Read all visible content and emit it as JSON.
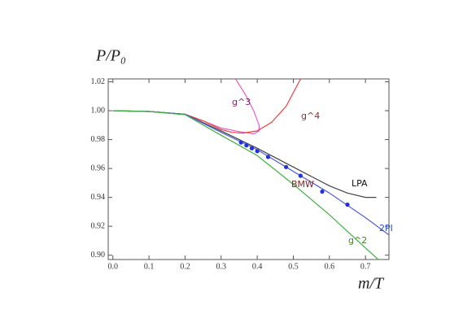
{
  "chart_data": {
    "type": "line",
    "ylabel": "P/P₀",
    "xlabel": "m/T",
    "xlim": [
      -0.013,
      0.765
    ],
    "ylim": [
      0.897,
      1.022
    ],
    "xticks": [
      {
        "value": 0,
        "label": "0.0"
      },
      0.1,
      0.2,
      0.3,
      0.4,
      0.5,
      0.6,
      0.7
    ],
    "yticks": [
      {
        "value": 0.9,
        "label": "0.90"
      },
      0.92,
      0.94,
      0.96,
      0.98,
      {
        "value": 1,
        "label": "1.00"
      },
      1.02
    ],
    "series": [
      {
        "name": "g^3",
        "color": "#e060c8",
        "label_color": "#7a2a6a",
        "x": [
          0,
          0.1,
          0.2,
          0.25,
          0.3,
          0.35,
          0.39,
          0.405,
          0.405,
          0.39,
          0.37,
          0.34
        ],
        "values": [
          1.0,
          0.9995,
          0.9975,
          0.993,
          0.988,
          0.9855,
          0.984,
          0.986,
          0.99,
          1.0,
          1.01,
          1.022
        ]
      },
      {
        "name": "g^4",
        "color": "#f04040",
        "label_color": "#8b3030",
        "x": [
          0,
          0.1,
          0.2,
          0.25,
          0.3,
          0.33,
          0.36,
          0.4,
          0.44,
          0.48,
          0.52
        ],
        "values": [
          1.0,
          0.9995,
          0.9975,
          0.993,
          0.987,
          0.985,
          0.9845,
          0.986,
          0.992,
          1.003,
          1.022
        ]
      },
      {
        "name": "LPA",
        "color": "#444444",
        "label_color": "#111111",
        "x": [
          0,
          0.1,
          0.2,
          0.3,
          0.4,
          0.5,
          0.6,
          0.65,
          0.7,
          0.73
        ],
        "values": [
          1.0,
          0.9995,
          0.9975,
          0.986,
          0.974,
          0.961,
          0.948,
          0.943,
          0.94,
          0.94
        ]
      },
      {
        "name": "2PI",
        "color": "#5060e0",
        "label_color": "#3050c0",
        "x": [
          0,
          0.1,
          0.2,
          0.3,
          0.4,
          0.5,
          0.6,
          0.7,
          0.765
        ],
        "values": [
          1.0,
          0.9995,
          0.9975,
          0.985,
          0.973,
          0.958,
          0.943,
          0.926,
          0.914
        ]
      },
      {
        "name": "g^2",
        "color": "#40b040",
        "label_color": "#3a8a20",
        "x": [
          0,
          0.1,
          0.2,
          0.3,
          0.4,
          0.5,
          0.6,
          0.7,
          0.74
        ],
        "values": [
          1.0,
          0.9995,
          0.9972,
          0.983,
          0.969,
          0.949,
          0.928,
          0.905,
          0.896
        ]
      },
      {
        "name": "BMW",
        "color": "#2030e0",
        "label_color": "#8b2020",
        "markers": true,
        "x": [
          0.355,
          0.37,
          0.385,
          0.4,
          0.43,
          0.48,
          0.52,
          0.58,
          0.65
        ],
        "values": [
          0.978,
          0.976,
          0.974,
          0.972,
          0.968,
          0.961,
          0.955,
          0.944,
          0.935
        ]
      }
    ]
  }
}
